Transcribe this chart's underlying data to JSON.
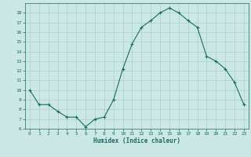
{
  "x": [
    0,
    1,
    2,
    3,
    4,
    5,
    6,
    7,
    8,
    9,
    10,
    11,
    12,
    13,
    14,
    15,
    16,
    17,
    18,
    19,
    20,
    21,
    22,
    23
  ],
  "y": [
    10,
    8.5,
    8.5,
    7.8,
    7.2,
    7.2,
    6.2,
    7.0,
    7.2,
    9.0,
    12.2,
    14.8,
    16.5,
    17.2,
    18.0,
    18.5,
    18.0,
    17.2,
    16.5,
    13.5,
    13.0,
    12.2,
    10.8,
    8.5
  ],
  "xlabel": "Humidex (Indice chaleur)",
  "bg_color": "#cce8e5",
  "grid_color": "#aacfcc",
  "line_color": "#1a6b60",
  "ylim": [
    6,
    19
  ],
  "xlim": [
    -0.5,
    23.5
  ],
  "yticks": [
    6,
    7,
    8,
    9,
    10,
    11,
    12,
    13,
    14,
    15,
    16,
    17,
    18
  ],
  "xticks": [
    0,
    1,
    2,
    3,
    4,
    5,
    6,
    7,
    8,
    9,
    10,
    11,
    12,
    13,
    14,
    15,
    16,
    17,
    18,
    19,
    20,
    21,
    22,
    23
  ]
}
